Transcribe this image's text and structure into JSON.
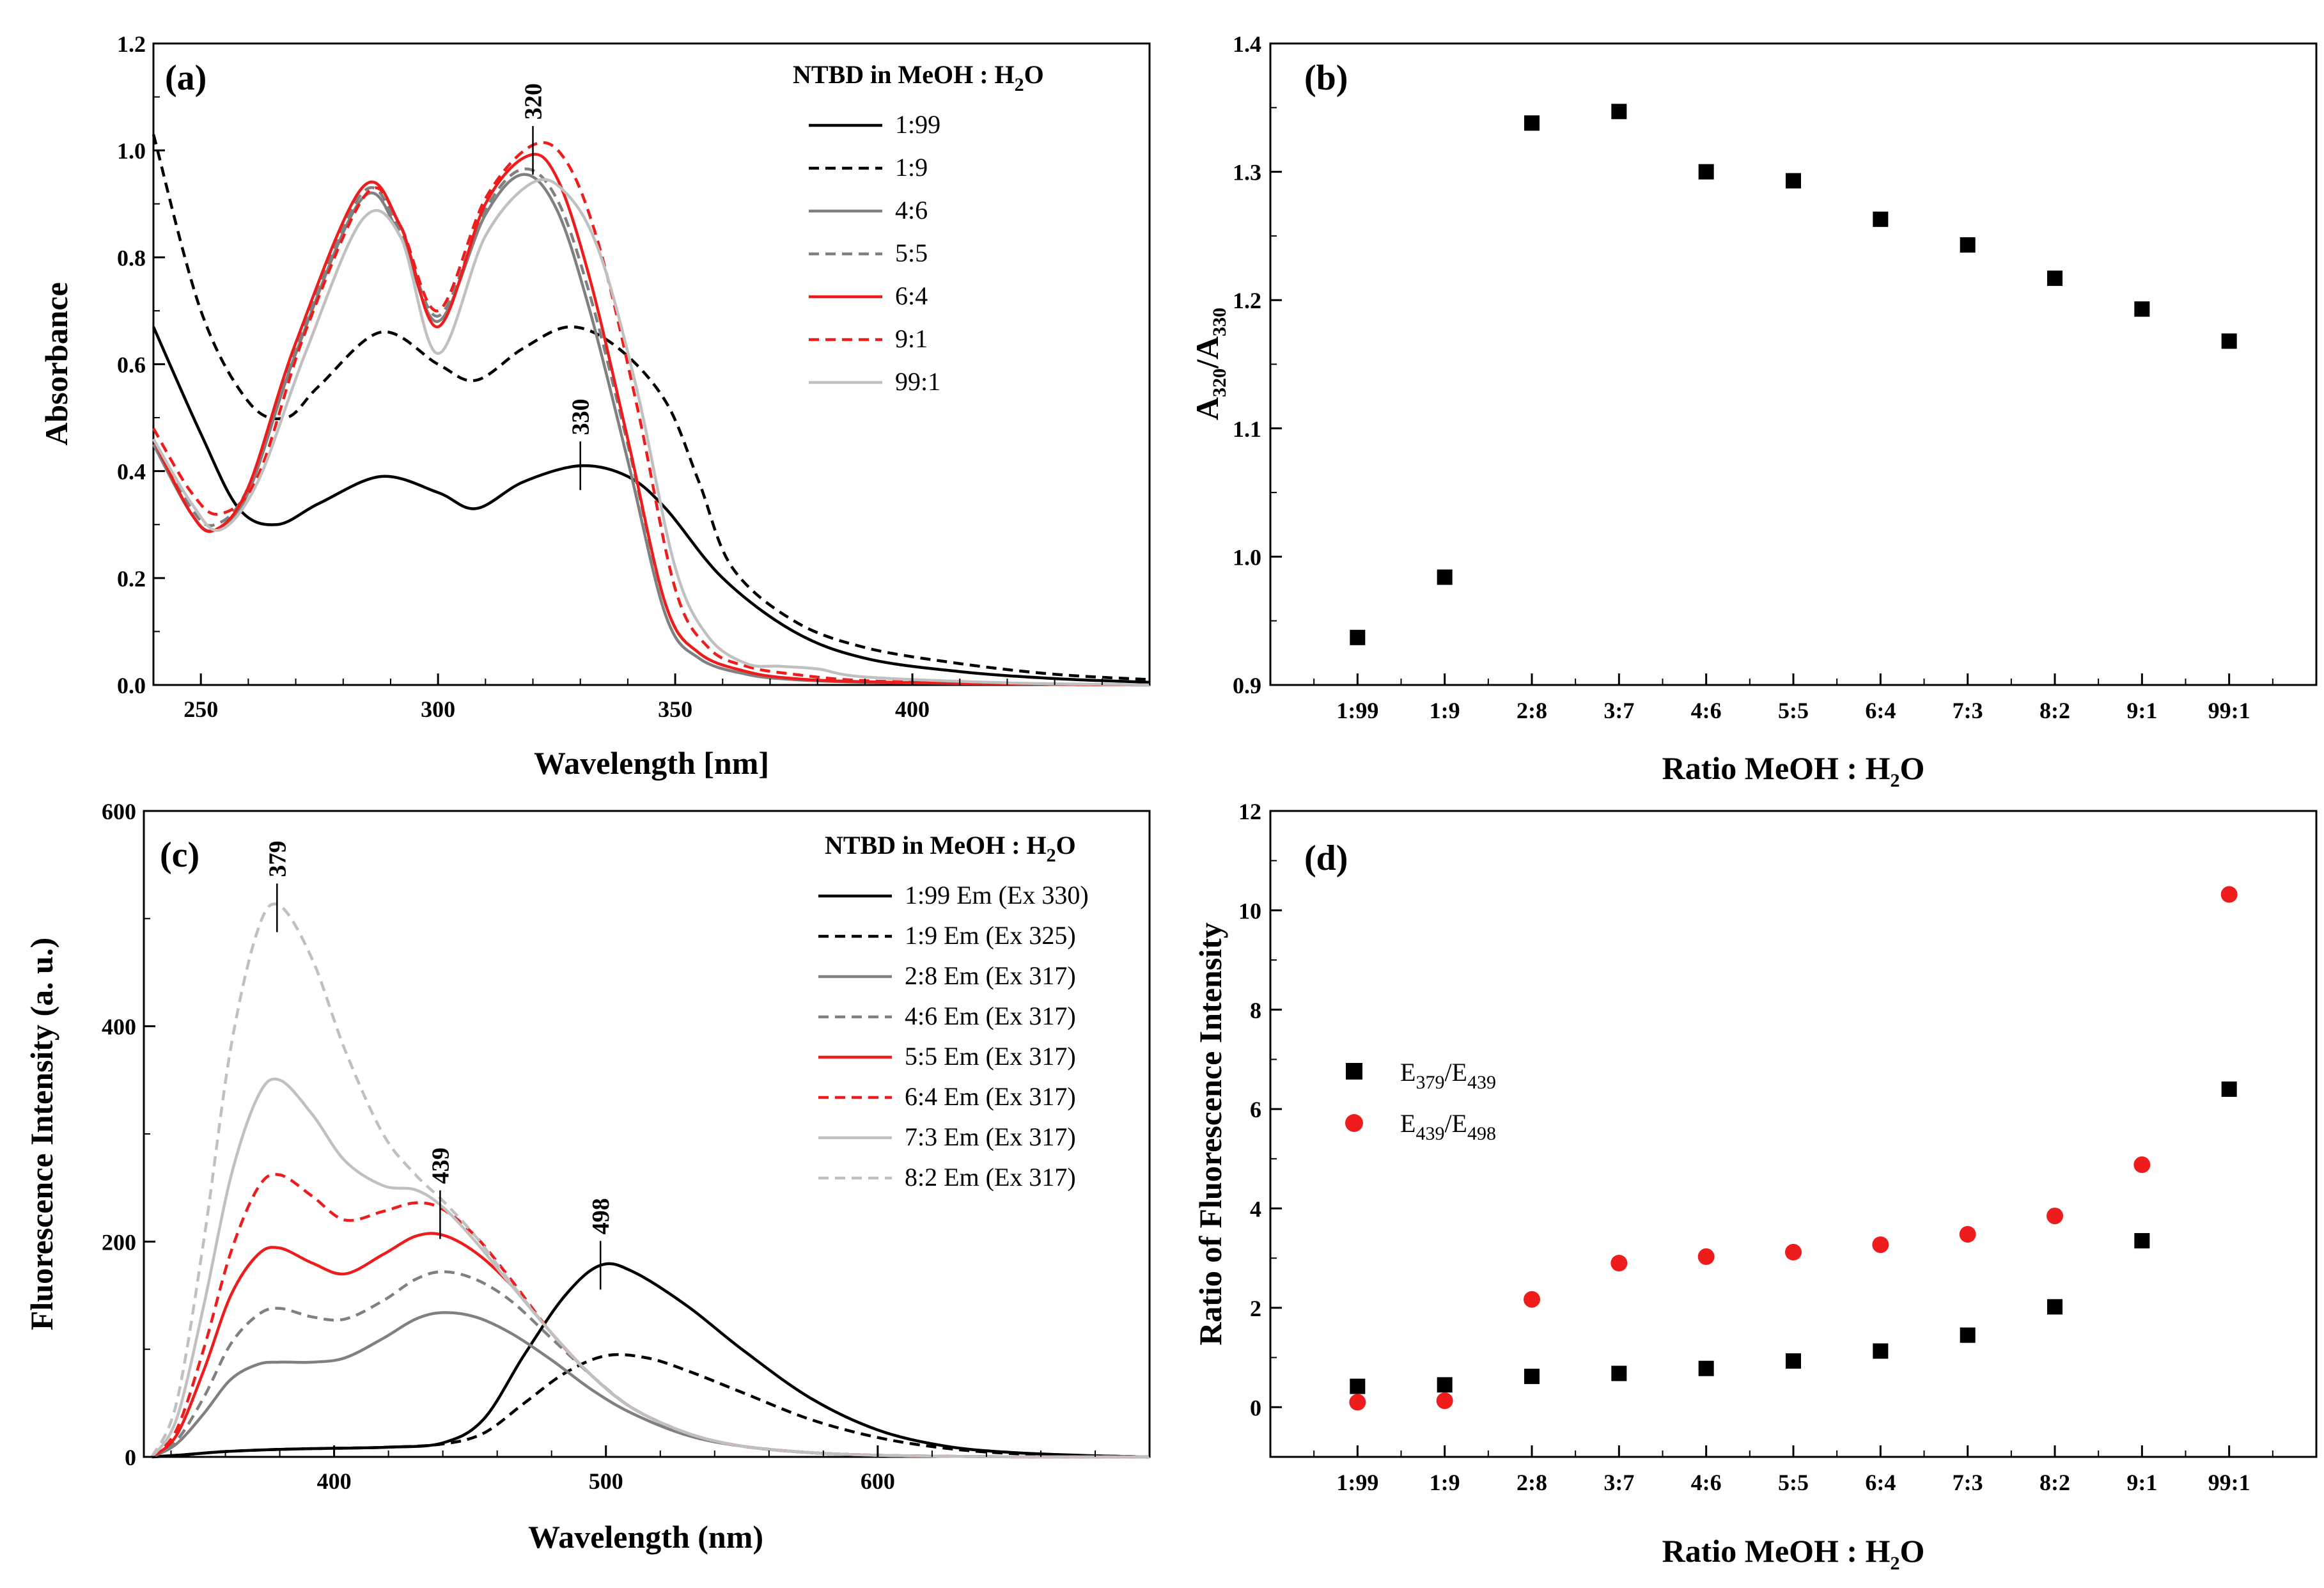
{
  "chart_data": [
    {
      "panel": "(a)",
      "type": "line",
      "xlabel": "Wavelength [nm]",
      "ylabel": "Absorbance",
      "xlim": [
        240,
        450
      ],
      "ylim": [
        0,
        1.2
      ],
      "xticks": [
        250,
        300,
        350,
        400
      ],
      "yticks": [
        0.0,
        0.2,
        0.4,
        0.6,
        0.8,
        1.0,
        1.2
      ],
      "legend_title": "NTBD in MeOH : H",
      "legend_title_sub": "2",
      "legend_title_tail": "O",
      "annotations": [
        {
          "text": "320",
          "x": 320,
          "y": 1.0
        },
        {
          "text": "330",
          "x": 330,
          "y": 0.41
        }
      ],
      "series": [
        {
          "name": "1:99",
          "color": "#000000",
          "dash": "solid",
          "x": [
            240,
            250,
            258,
            266,
            275,
            288,
            300,
            308,
            318,
            330,
            340,
            348,
            360,
            375,
            390,
            410,
            430,
            450
          ],
          "y": [
            0.67,
            0.47,
            0.33,
            0.3,
            0.34,
            0.39,
            0.36,
            0.33,
            0.38,
            0.41,
            0.39,
            0.33,
            0.2,
            0.1,
            0.05,
            0.025,
            0.012,
            0.005
          ]
        },
        {
          "name": "1:9",
          "color": "#000000",
          "dash": "dash",
          "x": [
            240,
            250,
            260,
            268,
            275,
            288,
            300,
            308,
            318,
            328,
            338,
            348,
            355,
            362,
            375,
            390,
            410,
            430,
            450
          ],
          "y": [
            1.03,
            0.7,
            0.53,
            0.5,
            0.56,
            0.66,
            0.6,
            0.57,
            0.63,
            0.67,
            0.63,
            0.53,
            0.38,
            0.22,
            0.12,
            0.07,
            0.04,
            0.02,
            0.01
          ]
        },
        {
          "name": "4:6",
          "color": "#808080",
          "dash": "solid",
          "x": [
            240,
            248,
            253,
            260,
            270,
            284,
            292,
            300,
            310,
            318,
            325,
            332,
            340,
            348,
            355,
            365,
            375,
            390,
            420,
            450
          ],
          "y": [
            0.45,
            0.32,
            0.29,
            0.36,
            0.62,
            0.91,
            0.84,
            0.68,
            0.88,
            0.955,
            0.89,
            0.7,
            0.42,
            0.13,
            0.05,
            0.02,
            0.01,
            0.005,
            0.002,
            0.0
          ]
        },
        {
          "name": "5:5",
          "color": "#808080",
          "dash": "dash",
          "x": [
            240,
            248,
            253,
            260,
            270,
            284,
            292,
            300,
            310,
            318,
            325,
            332,
            340,
            348,
            355,
            365,
            375,
            390,
            420,
            450
          ],
          "y": [
            0.46,
            0.33,
            0.3,
            0.37,
            0.63,
            0.92,
            0.85,
            0.69,
            0.89,
            0.965,
            0.91,
            0.73,
            0.45,
            0.15,
            0.06,
            0.025,
            0.012,
            0.006,
            0.002,
            0.0
          ]
        },
        {
          "name": "6:4",
          "color": "#ee1c1c",
          "dash": "solid",
          "x": [
            240,
            248,
            253,
            260,
            270,
            284,
            292,
            300,
            310,
            319,
            325,
            332,
            340,
            348,
            355,
            365,
            375,
            390,
            420,
            450
          ],
          "y": [
            0.46,
            0.32,
            0.29,
            0.37,
            0.64,
            0.93,
            0.86,
            0.67,
            0.9,
            0.99,
            0.95,
            0.76,
            0.46,
            0.15,
            0.06,
            0.025,
            0.012,
            0.006,
            0.002,
            0.0
          ]
        },
        {
          "name": "9:1",
          "color": "#ee1c1c",
          "dash": "dash",
          "x": [
            240,
            248,
            254,
            262,
            272,
            285,
            292,
            300,
            310,
            320,
            327,
            334,
            342,
            350,
            357,
            365,
            375,
            390,
            420,
            450
          ],
          "y": [
            0.48,
            0.36,
            0.32,
            0.39,
            0.66,
            0.92,
            0.86,
            0.7,
            0.91,
            1.01,
            0.98,
            0.82,
            0.52,
            0.18,
            0.07,
            0.035,
            0.02,
            0.008,
            0.002,
            0.0
          ]
        },
        {
          "name": "99:1",
          "color": "#c0c0c0",
          "dash": "solid",
          "x": [
            240,
            248,
            254,
            262,
            272,
            284,
            292,
            300,
            310,
            320,
            327,
            334,
            342,
            350,
            357,
            365,
            372,
            380,
            390,
            420,
            450
          ],
          "y": [
            0.46,
            0.34,
            0.29,
            0.38,
            0.62,
            0.87,
            0.84,
            0.62,
            0.84,
            0.94,
            0.92,
            0.81,
            0.55,
            0.22,
            0.09,
            0.04,
            0.035,
            0.03,
            0.015,
            0.004,
            0.0
          ]
        }
      ]
    },
    {
      "panel": "(b)",
      "type": "scatter",
      "xlabel": "Ratio MeOH : H",
      "xlabel_sub": "2",
      "xlabel_tail": "O",
      "ylabel": "A",
      "ylabel_sub1": "320",
      "ylabel_mid": "/A",
      "ylabel_sub2": "330",
      "ylim": [
        0.9,
        1.4
      ],
      "yticks": [
        0.9,
        1.0,
        1.1,
        1.2,
        1.3,
        1.4
      ],
      "categories": [
        "1:99",
        "1:9",
        "2:8",
        "3:7",
        "4:6",
        "5:5",
        "6:4",
        "7:3",
        "8:2",
        "9:1",
        "99:1"
      ],
      "series": [
        {
          "name": "A320/A330",
          "marker": "square",
          "color": "#000000",
          "values": [
            0.937,
            0.984,
            1.338,
            1.347,
            1.3,
            1.293,
            1.263,
            1.243,
            1.217,
            1.193,
            1.168
          ]
        }
      ]
    },
    {
      "panel": "(c)",
      "type": "line",
      "xlabel": "Wavelength (nm)",
      "ylabel": "Fluorescence Intensity (a. u.)",
      "xlim": [
        330,
        700
      ],
      "ylim": [
        0,
        600
      ],
      "xticks": [
        400,
        500,
        600
      ],
      "yticks": [
        0,
        200,
        400,
        600
      ],
      "legend_title": "NTBD in MeOH : H",
      "legend_title_sub": "2",
      "legend_title_tail": "O",
      "annotations": [
        {
          "text": "379",
          "x": 379,
          "y": 510
        },
        {
          "text": "439",
          "x": 439,
          "y": 225
        },
        {
          "text": "498",
          "x": 498,
          "y": 178
        }
      ],
      "series": [
        {
          "name": "1:99",
          "label_tail": "Em (Ex 330)",
          "color": "#000000",
          "dash": "solid",
          "x": [
            333,
            345,
            360,
            380,
            400,
            420,
            440,
            455,
            470,
            485,
            498,
            510,
            530,
            550,
            575,
            600,
            625,
            650,
            680,
            700
          ],
          "y": [
            0,
            2,
            5,
            7,
            8,
            9,
            13,
            35,
            95,
            150,
            178,
            172,
            140,
            100,
            55,
            25,
            10,
            4,
            1,
            0
          ]
        },
        {
          "name": "1:9",
          "label_tail": "Em (Ex 325)",
          "color": "#000000",
          "dash": "dash",
          "x": [
            333,
            345,
            360,
            380,
            400,
            420,
            440,
            455,
            470,
            485,
            500,
            515,
            530,
            550,
            575,
            600,
            625,
            650,
            680,
            700
          ],
          "y": [
            0,
            2,
            5,
            7,
            8,
            9,
            12,
            22,
            50,
            78,
            94,
            92,
            80,
            60,
            35,
            18,
            8,
            3,
            1,
            0
          ]
        },
        {
          "name": "2:8",
          "label_tail": "Em (Ex 317)",
          "color": "#808080",
          "dash": "solid",
          "x": [
            333,
            342,
            352,
            362,
            372,
            380,
            392,
            404,
            418,
            430,
            440,
            452,
            465,
            480,
            495,
            510,
            530,
            550,
            575,
            600,
            630,
            660,
            700
          ],
          "y": [
            0,
            12,
            40,
            72,
            86,
            88,
            88,
            92,
            110,
            128,
            134,
            130,
            115,
            90,
            62,
            40,
            20,
            10,
            4,
            1.5,
            0.5,
            0,
            0
          ]
        },
        {
          "name": "4:6",
          "label_tail": "Em (Ex 317)",
          "color": "#808080",
          "dash": "dash",
          "x": [
            333,
            342,
            352,
            362,
            372,
            380,
            392,
            404,
            418,
            430,
            440,
            452,
            465,
            480,
            495,
            510,
            530,
            550,
            575,
            600,
            630,
            660,
            700
          ],
          "y": [
            0,
            15,
            55,
            105,
            132,
            138,
            130,
            128,
            145,
            165,
            172,
            165,
            145,
            110,
            75,
            45,
            22,
            10,
            4,
            1.5,
            0.5,
            0,
            0
          ]
        },
        {
          "name": "5:5",
          "label_tail": "Em (Ex 317)",
          "color": "#ee1c1c",
          "dash": "solid",
          "x": [
            333,
            342,
            352,
            362,
            372,
            380,
            392,
            404,
            418,
            430,
            440,
            452,
            465,
            480,
            495,
            510,
            530,
            550,
            575,
            600,
            630,
            660,
            700
          ],
          "y": [
            0,
            20,
            80,
            150,
            188,
            194,
            180,
            170,
            188,
            205,
            206,
            190,
            160,
            115,
            75,
            45,
            22,
            10,
            4,
            1.5,
            0.5,
            0,
            0
          ]
        },
        {
          "name": "6:4",
          "label_tail": "Em (Ex 317)",
          "color": "#ee1c1c",
          "dash": "dash",
          "x": [
            333,
            342,
            352,
            362,
            372,
            380,
            392,
            404,
            418,
            430,
            440,
            452,
            465,
            480,
            495,
            510,
            530,
            550,
            575,
            600,
            630,
            660,
            700
          ],
          "y": [
            0,
            25,
            100,
            190,
            250,
            262,
            242,
            220,
            228,
            236,
            230,
            205,
            165,
            115,
            75,
            45,
            22,
            10,
            4,
            1.5,
            0.5,
            0,
            0
          ]
        },
        {
          "name": "7:3",
          "label_tail": "Em (Ex 317)",
          "color": "#c0c0c0",
          "dash": "solid",
          "x": [
            333,
            342,
            352,
            362,
            372,
            380,
            392,
            404,
            418,
            430,
            440,
            452,
            465,
            480,
            495,
            510,
            530,
            550,
            575,
            600,
            630,
            660,
            700
          ],
          "y": [
            0,
            35,
            140,
            260,
            335,
            350,
            318,
            275,
            252,
            248,
            232,
            200,
            160,
            115,
            75,
            45,
            22,
            10,
            4,
            1.5,
            0.5,
            0,
            0
          ]
        },
        {
          "name": "8:2",
          "label_tail": "Em (Ex 317)",
          "color": "#c0c0c0",
          "dash": "dash",
          "x": [
            333,
            342,
            352,
            362,
            372,
            380,
            392,
            404,
            418,
            430,
            440,
            452,
            465,
            480,
            495,
            510,
            530,
            550,
            575,
            600,
            630,
            660,
            700
          ],
          "y": [
            0,
            50,
            200,
            380,
            490,
            512,
            462,
            378,
            300,
            262,
            238,
            205,
            162,
            115,
            75,
            45,
            22,
            10,
            4,
            1.5,
            0.5,
            0,
            0
          ]
        }
      ]
    },
    {
      "panel": "(d)",
      "type": "scatter",
      "xlabel": "Ratio MeOH : H",
      "xlabel_sub": "2",
      "xlabel_tail": "O",
      "ylabel": "Ratio of Fluorescence Intensity",
      "ylim": [
        -1,
        12
      ],
      "yticks": [
        0,
        2,
        4,
        6,
        8,
        10,
        12
      ],
      "categories": [
        "1:99",
        "1:9",
        "2:8",
        "3:7",
        "4:6",
        "5:5",
        "6:4",
        "7:3",
        "8:2",
        "9:1",
        "99:1"
      ],
      "series": [
        {
          "name": "E",
          "name_sub1": "379",
          "name_mid": "/E",
          "name_sub2": "439",
          "marker": "square",
          "color": "#000000",
          "values": [
            0.42,
            0.45,
            0.62,
            0.68,
            0.78,
            0.93,
            1.13,
            1.45,
            2.02,
            3.35,
            6.4
          ]
        },
        {
          "name": "E",
          "name_sub1": "439",
          "name_mid": "/E",
          "name_sub2": "498",
          "marker": "circle",
          "color": "#ee1c1c",
          "values": [
            0.1,
            0.13,
            2.17,
            2.9,
            3.03,
            3.12,
            3.27,
            3.48,
            3.85,
            4.88,
            10.32
          ]
        }
      ]
    }
  ]
}
